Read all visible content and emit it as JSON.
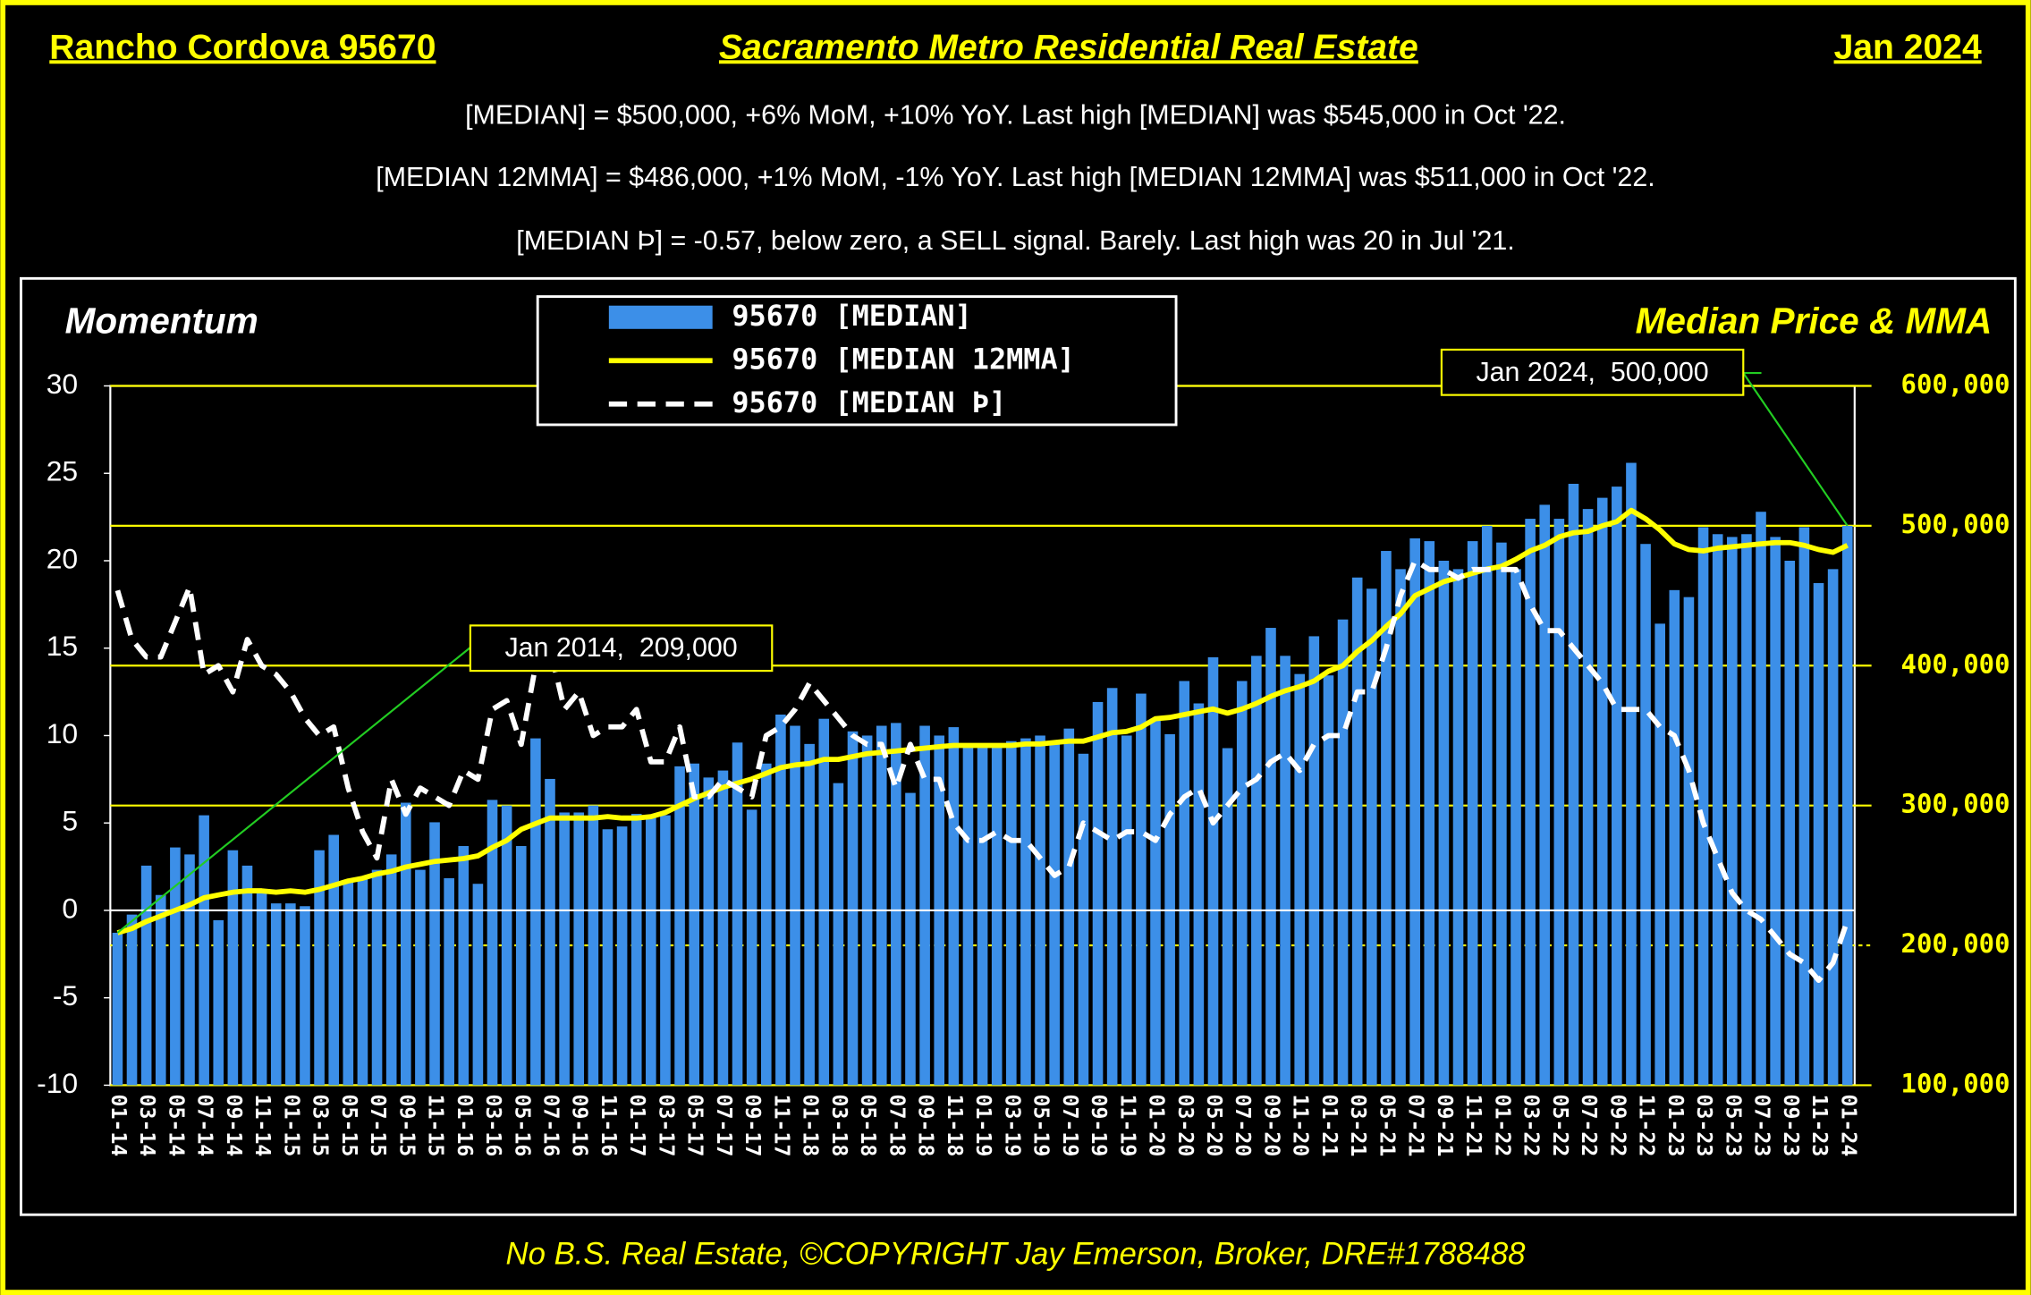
{
  "header": {
    "left": "Rancho Cordova 95670",
    "title": "Sacramento Metro Residential Real Estate",
    "right": "Jan 2024"
  },
  "subtitles": [
    "[MEDIAN] = $500,000, +6% MoM, +10% YoY. Last  high [MEDIAN] was $545,000 in Oct '22.",
    "[MEDIAN 12MMA] = $486,000, +1% MoM, -1% YoY. Last high [MEDIAN 12MMA] was $511,000 in Oct '22.",
    "[MEDIAN Þ] = -0.57, below zero, a SELL signal. Barely. Last high was 20 in Jul '21."
  ],
  "footer": "No B.S. Real Estate, ©COPYRIGHT Jay Emerson, Broker, DRE#1788488",
  "chart_data": {
    "type": "bar",
    "y_label": "Momentum",
    "y2_label": "Median Price & MMA",
    "legend": "top",
    "annotations": [
      {
        "text": "Jan 2014,  209,000"
      },
      {
        "text": "Jan 2024,  500,000"
      }
    ],
    "categories": [
      "01-14",
      null,
      "03-14",
      null,
      "05-14",
      null,
      "07-14",
      null,
      "09-14",
      null,
      "11-14",
      null,
      "01-15",
      null,
      "03-15",
      null,
      "05-15",
      null,
      "07-15",
      null,
      "09-15",
      null,
      "11-15",
      null,
      "01-16",
      null,
      "03-16",
      null,
      "05-16",
      null,
      "07-16",
      null,
      "09-16",
      null,
      "11-16",
      null,
      "01-17",
      null,
      "03-17",
      null,
      "05-17",
      null,
      "07-17",
      null,
      "09-17",
      null,
      "11-17",
      null,
      "01-18",
      null,
      "03-18",
      null,
      "05-18",
      null,
      "07-18",
      null,
      "09-18",
      null,
      "11-18",
      null,
      "01-19",
      null,
      "03-19",
      null,
      "05-19",
      null,
      "07-19",
      null,
      "09-19",
      null,
      "11-19",
      null,
      "01-20",
      null,
      "03-20",
      null,
      "05-20",
      null,
      "07-20",
      null,
      "09-20",
      null,
      "11-20",
      null,
      "01-21",
      null,
      "03-21",
      null,
      "05-21",
      null,
      "07-21",
      null,
      "09-21",
      null,
      "11-21",
      null,
      "01-22",
      null,
      "03-22",
      null,
      "05-22",
      null,
      "07-22",
      null,
      "09-22",
      null,
      "11-22",
      null,
      "01-23",
      null,
      "03-23",
      null,
      "05-23",
      null,
      "07-23",
      null,
      "09-23",
      null,
      "11-23",
      null,
      "01-24"
    ],
    "ylim": [
      -10,
      30
    ],
    "yticks": [
      -10,
      -5,
      0,
      5,
      10,
      15,
      20,
      25,
      30
    ],
    "y2lim": [
      100000,
      600000
    ],
    "y2ticks": [
      {
        "value": 100000,
        "label": "100,000"
      },
      {
        "value": 200000,
        "label": "200,000"
      },
      {
        "value": 300000,
        "label": "300,000"
      },
      {
        "value": 400000,
        "label": "400,000"
      },
      {
        "value": 500000,
        "label": "500,000"
      },
      {
        "value": 600000,
        "label": "600,000"
      }
    ],
    "series": [
      {
        "name": "95670 [MEDIAN]",
        "type": "bar",
        "axis": "y2",
        "color": "#3c8fe8",
        "values": [
          209000,
          222000,
          257000,
          236000,
          270000,
          265000,
          293000,
          218000,
          268000,
          257000,
          239000,
          230000,
          230000,
          228000,
          268000,
          279000,
          246000,
          248000,
          254000,
          265000,
          302000,
          254000,
          288000,
          248000,
          271000,
          244000,
          304000,
          300000,
          271000,
          348000,
          319000,
          295000,
          295000,
          300000,
          283000,
          285000,
          294000,
          293000,
          293000,
          328000,
          330000,
          320000,
          325000,
          345000,
          297000,
          330000,
          365000,
          357000,
          344000,
          362000,
          316000,
          353000,
          350000,
          357000,
          359000,
          309000,
          357000,
          350000,
          356000,
          344000,
          344000,
          344000,
          346000,
          348000,
          350000,
          346000,
          355000,
          337000,
          374000,
          384000,
          350000,
          380000,
          362000,
          351000,
          389000,
          373000,
          406000,
          341000,
          389000,
          407000,
          427000,
          407000,
          394000,
          421000,
          393000,
          433000,
          463000,
          455000,
          482000,
          469000,
          491000,
          489000,
          475000,
          469000,
          489000,
          500000,
          488000,
          469000,
          505000,
          515000,
          505000,
          530000,
          512000,
          520000,
          528000,
          545000,
          487000,
          430000,
          454000,
          449000,
          499000,
          494000,
          492000,
          494000,
          510000,
          492000,
          475000,
          499000,
          459000,
          469000,
          500000
        ]
      },
      {
        "name": "95670 [MEDIAN 12MMA]",
        "type": "line",
        "axis": "y2",
        "color": "#ffff00",
        "values": [
          209000,
          212000,
          217000,
          221000,
          225000,
          229000,
          234000,
          236000,
          238000,
          239000,
          239000,
          238000,
          239000,
          238000,
          240000,
          243000,
          246000,
          248000,
          251000,
          253000,
          256000,
          258000,
          260000,
          261000,
          262000,
          264000,
          270000,
          275000,
          283000,
          287000,
          291000,
          291000,
          291000,
          291000,
          292000,
          291000,
          291000,
          292000,
          295000,
          300000,
          305000,
          309000,
          313000,
          316000,
          319000,
          323000,
          327000,
          329000,
          330000,
          333000,
          333000,
          335000,
          337000,
          338000,
          339000,
          340000,
          341000,
          342000,
          343000,
          343000,
          343000,
          343000,
          343000,
          344000,
          344000,
          345000,
          346000,
          346000,
          349000,
          352000,
          353000,
          356000,
          362000,
          363000,
          365000,
          367000,
          369000,
          366000,
          369000,
          373000,
          378000,
          382000,
          385000,
          389000,
          396000,
          400000,
          410000,
          418000,
          428000,
          437000,
          450000,
          455000,
          460000,
          463000,
          466000,
          469000,
          471000,
          476000,
          482000,
          486000,
          492000,
          495000,
          496000,
          500000,
          503000,
          511000,
          505000,
          497000,
          487000,
          483000,
          482000,
          484000,
          485000,
          486000,
          487000,
          488000,
          488000,
          486000,
          483000,
          481000,
          486000
        ]
      },
      {
        "name": "95670 [MEDIAN Þ]",
        "type": "dashed",
        "axis": "y",
        "color": "#ffffff",
        "values": [
          18.3,
          15.5,
          14.5,
          14.5,
          16.5,
          18.5,
          13.5,
          14,
          12.5,
          15.5,
          14,
          13.5,
          12.5,
          11,
          10,
          10.5,
          7,
          4.5,
          3,
          7.5,
          5.5,
          7,
          6.5,
          6,
          8,
          7.5,
          11.5,
          12,
          9.5,
          14,
          15,
          11.5,
          12.5,
          10,
          10.5,
          10.5,
          11.5,
          8.5,
          8.5,
          10.5,
          6.5,
          6.5,
          7.5,
          7,
          6.5,
          10,
          10.5,
          11.5,
          13,
          12,
          11,
          10,
          9.5,
          9.5,
          7,
          9.5,
          7.5,
          7.5,
          5,
          4,
          4,
          4.5,
          4,
          4,
          3,
          2,
          2.5,
          5,
          4.5,
          4,
          4.5,
          4.5,
          4,
          5.5,
          6.5,
          7,
          5,
          6,
          7,
          7.5,
          8.5,
          9,
          8,
          9.5,
          10,
          10,
          12.5,
          12.5,
          15,
          18,
          20,
          19.5,
          19.5,
          19,
          19.5,
          19.5,
          19.5,
          19.5,
          17.5,
          16,
          16,
          15,
          14,
          13,
          11.5,
          11.5,
          11.5,
          10.5,
          10,
          8,
          5,
          3,
          1,
          0,
          -0.5,
          -1.5,
          -2.5,
          -3,
          -4,
          -3,
          -0.57
        ]
      }
    ]
  }
}
